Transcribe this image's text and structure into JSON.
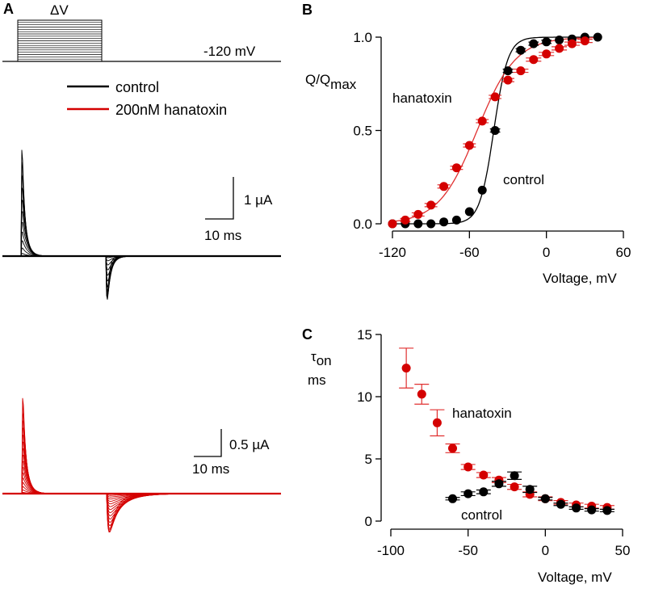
{
  "colors": {
    "control": "#000000",
    "hanatoxin": "#d40000",
    "hanatoxin_fit": "#e03030"
  },
  "panelA": {
    "label": "A",
    "protocol": {
      "step_label": "ΔV",
      "holding_label": "-120 mV",
      "n_steps": 17
    },
    "legend": [
      {
        "name": "control",
        "color_key": "control"
      },
      {
        "name": "200nM hanatoxin",
        "color_key": "hanatoxin"
      }
    ],
    "scalebar_control": {
      "current": "1 µA",
      "time": "10 ms"
    },
    "scalebar_toxin": {
      "current": "0.5 µA",
      "time": "10 ms"
    }
  },
  "chart_data": [
    {
      "panel": "B",
      "type": "scatter",
      "title": "",
      "xlabel": "Voltage, mV",
      "ylabel": "Q/Q",
      "ylabel_sub": "max",
      "xlim": [
        -120,
        60
      ],
      "ylim": [
        0,
        1
      ],
      "xticks": [
        -120,
        -60,
        0,
        60
      ],
      "xtick_labels": [
        "-120",
        "-60",
        "0",
        "60"
      ],
      "yticks": [
        0,
        0.5,
        1
      ],
      "ytick_labels": [
        "0.0",
        "0.5",
        "1.0"
      ],
      "grid": false,
      "annotations": [
        "hanatoxin",
        "control"
      ],
      "series": [
        {
          "name": "control",
          "color_key": "control",
          "x": [
            -120,
            -110,
            -100,
            -90,
            -80,
            -70,
            -60,
            -50,
            -40,
            -30,
            -20,
            -10,
            0,
            10,
            20,
            30,
            40
          ],
          "y": [
            0,
            0,
            0,
            0,
            0.01,
            0.02,
            0.065,
            0.18,
            0.5,
            0.82,
            0.93,
            0.965,
            0.975,
            0.985,
            0.99,
            1.0,
            1.0
          ],
          "xerr": [
            0,
            0,
            0,
            0,
            0,
            2,
            3,
            3,
            4,
            4,
            4,
            4,
            4,
            3,
            3,
            3,
            2
          ],
          "fit": {
            "model": "boltzmann",
            "v_half": -41,
            "slope": 5.5
          }
        },
        {
          "name": "hanatoxin",
          "color_key": "hanatoxin",
          "x": [
            -120,
            -110,
            -100,
            -90,
            -80,
            -70,
            -60,
            -50,
            -40,
            -30,
            -20,
            -10,
            0,
            10,
            20,
            30
          ],
          "y": [
            0,
            0.02,
            0.05,
            0.1,
            0.2,
            0.3,
            0.42,
            0.55,
            0.68,
            0.77,
            0.82,
            0.88,
            0.91,
            0.94,
            0.965,
            0.98
          ],
          "xerr": [
            3,
            4,
            5,
            5,
            5,
            5,
            5,
            5,
            5,
            5,
            6,
            6,
            6,
            6,
            6,
            6
          ],
          "fit": {
            "model": "boltzmann",
            "v_half": -54,
            "slope": 15
          }
        }
      ]
    },
    {
      "panel": "C",
      "type": "scatter",
      "title": "",
      "xlabel": "Voltage, mV",
      "ylabel": "τ",
      "ylabel_sub": "on",
      "ylabel_unit": "ms",
      "xlim": [
        -100,
        50
      ],
      "ylim": [
        0,
        15
      ],
      "xticks": [
        -100,
        -50,
        0,
        50
      ],
      "xtick_labels": [
        "-100",
        "-50",
        "0",
        "50"
      ],
      "yticks": [
        0,
        5,
        10,
        15
      ],
      "ytick_labels": [
        "0",
        "5",
        "10",
        "15"
      ],
      "grid": false,
      "annotations": [
        "hanatoxin",
        "control"
      ],
      "series": [
        {
          "name": "hanatoxin",
          "color_key": "hanatoxin",
          "x": [
            -90,
            -80,
            -70,
            -60,
            -50,
            -40,
            -30,
            -20,
            -10,
            0,
            10,
            20,
            30,
            40
          ],
          "y": [
            12.3,
            10.2,
            7.9,
            5.85,
            4.35,
            3.7,
            3.3,
            2.75,
            2.15,
            1.8,
            1.5,
            1.3,
            1.2,
            1.1
          ],
          "yerr": [
            1.6,
            0.8,
            1.05,
            0.35,
            0.2,
            0.2,
            0.2,
            0.2,
            0.2,
            0.15,
            0.15,
            0.15,
            0.15,
            0.15
          ]
        },
        {
          "name": "control",
          "color_key": "control",
          "x": [
            -60,
            -50,
            -40,
            -30,
            -20,
            -10,
            0,
            10,
            20,
            30,
            40
          ],
          "y": [
            1.8,
            2.2,
            2.35,
            3.0,
            3.65,
            2.55,
            1.8,
            1.35,
            1.05,
            0.9,
            0.85
          ],
          "yerr": [
            0.1,
            0.15,
            0.15,
            0.2,
            0.3,
            0.25,
            0.1,
            0.1,
            0.1,
            0.1,
            0.1
          ]
        }
      ]
    }
  ]
}
